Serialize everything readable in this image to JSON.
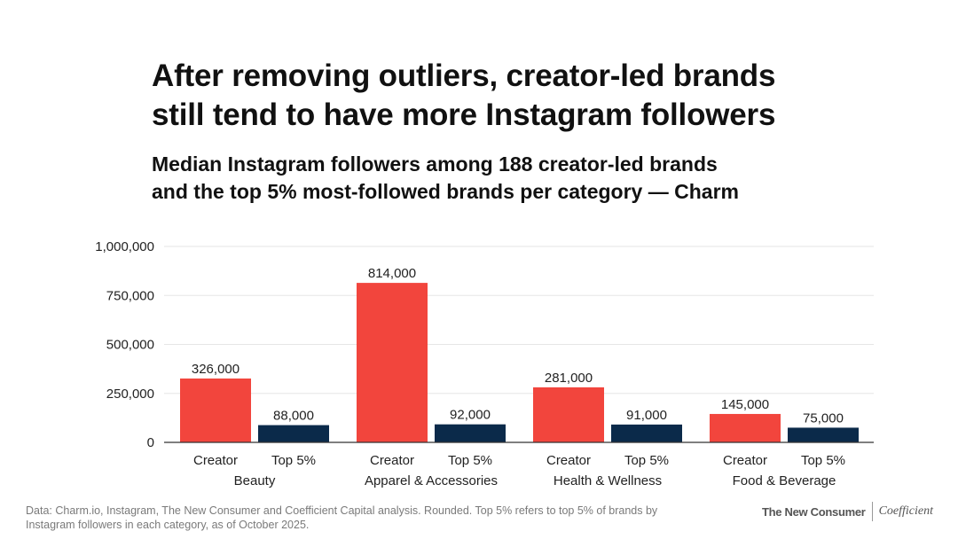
{
  "title_lines": [
    "After removing outliers, creator-led brands",
    "still tend to have more Instagram followers"
  ],
  "subtitle_lines": [
    "Median Instagram followers among 188 creator-led brands",
    "and the top 5% most-followed brands per category — Charm"
  ],
  "chart_data": {
    "type": "bar",
    "title": "After removing outliers, creator-led brands still tend to have more Instagram followers",
    "subtitle": "Median Instagram followers among 188 creator-led brands and the top 5% most-followed brands per category — Charm",
    "xlabel": "",
    "ylabel": "",
    "ylim": [
      0,
      1000000
    ],
    "yticks": [
      0,
      250000,
      500000,
      750000,
      1000000
    ],
    "ytick_labels": [
      "0",
      "250,000",
      "500,000",
      "750,000",
      "1,000,000"
    ],
    "grid": true,
    "categories": [
      "Beauty",
      "Apparel & Accessories",
      "Health & Wellness",
      "Food & Beverage"
    ],
    "series": [
      {
        "name": "Creator",
        "color": "#f2453d",
        "values": [
          326000,
          814000,
          281000,
          145000
        ],
        "labels": [
          "326,000",
          "814,000",
          "281,000",
          "145,000"
        ]
      },
      {
        "name": "Top 5%",
        "color": "#0b2a4a",
        "values": [
          88000,
          92000,
          91000,
          75000
        ],
        "labels": [
          "88,000",
          "92,000",
          "91,000",
          "75,000"
        ]
      }
    ]
  },
  "footer": {
    "note_lines": [
      "Data: Charm.io, Instagram, The New Consumer and Coefficient Capital analysis. Rounded. Top 5% refers to top 5% of brands by",
      "Instagram followers in each category, as of October 2025."
    ],
    "logo_left": "The New Consumer",
    "logo_right": "Coefficient"
  },
  "colors": {
    "creator": "#f2453d",
    "top5": "#0b2a4a",
    "grid": "#e6e6e6",
    "axis": "#333333",
    "text": "#222222"
  }
}
